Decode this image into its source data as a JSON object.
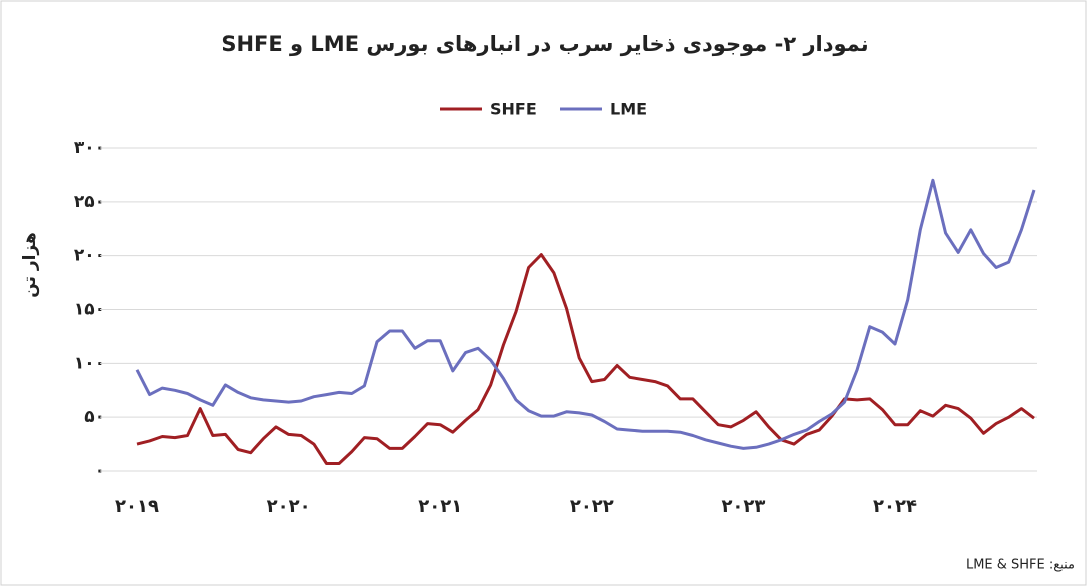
{
  "chart_data": {
    "type": "line",
    "title": "نمودار ۲- موجودی ذخایر سرب در انبارهای بورس LME و SHFE",
    "y_label": "هزار تن",
    "source": "منبع: LME & SHFE",
    "legend": "top",
    "grid": true,
    "categories": [
      "۲۰۱۹",
      null,
      null,
      null,
      null,
      null,
      null,
      null,
      null,
      null,
      null,
      null,
      "۲۰۲۰",
      null,
      null,
      null,
      null,
      null,
      null,
      null,
      null,
      null,
      null,
      null,
      "۲۰۲۱",
      null,
      null,
      null,
      null,
      null,
      null,
      null,
      null,
      null,
      null,
      null,
      "۲۰۲۲",
      null,
      null,
      null,
      null,
      null,
      null,
      null,
      null,
      null,
      null,
      null,
      "۲۰۲۳",
      null,
      null,
      null,
      null,
      null,
      null,
      null,
      null,
      null,
      null,
      null,
      "۲۰۲۴",
      null,
      null,
      null,
      null,
      null,
      null,
      null,
      null,
      null,
      null,
      null
    ],
    "series": [
      {
        "name": "SHFE",
        "color": "#a01f23",
        "values": [
          25,
          28,
          32,
          31,
          33,
          58,
          33,
          34,
          20,
          17,
          30,
          41,
          34,
          33,
          25,
          7,
          7,
          18,
          31,
          30,
          21,
          21,
          32,
          44,
          43,
          36,
          47,
          57,
          80,
          117,
          148,
          189,
          201,
          184,
          151,
          105,
          83,
          85,
          98,
          87,
          85,
          83,
          79,
          67,
          67,
          55,
          43,
          41,
          47,
          55,
          41,
          29,
          25,
          34,
          38,
          51,
          67,
          66,
          67,
          57,
          43,
          43,
          56,
          51,
          61,
          58,
          49,
          35,
          44,
          50,
          58,
          49
        ]
      },
      {
        "name": "LME",
        "color": "#6b6fbe",
        "values": [
          94,
          71,
          77,
          75,
          72,
          66,
          61,
          80,
          73,
          68,
          66,
          65,
          64,
          65,
          69,
          71,
          73,
          72,
          79,
          120,
          130,
          130,
          114,
          121,
          121,
          93,
          110,
          114,
          103,
          86,
          66,
          56,
          51,
          51,
          55,
          54,
          52,
          46,
          39,
          38,
          37,
          37,
          37,
          36,
          33,
          29,
          26,
          23,
          21,
          22,
          25,
          29,
          34,
          38,
          46,
          53,
          64,
          94,
          134,
          129,
          118,
          159,
          224,
          270,
          221,
          203,
          224,
          202,
          189,
          194,
          224,
          261
        ]
      }
    ],
    "ylim": [
      0,
      300
    ],
    "yticks": [
      {
        "value": 0,
        "label": "۰"
      },
      {
        "value": 50,
        "label": "۵۰"
      },
      {
        "value": 100,
        "label": "۱۰۰"
      },
      {
        "value": 150,
        "label": "۱۵۰"
      },
      {
        "value": 200,
        "label": "۲۰۰"
      },
      {
        "value": 250,
        "label": "۲۵۰"
      },
      {
        "value": 300,
        "label": "۳۰۰"
      }
    ]
  }
}
